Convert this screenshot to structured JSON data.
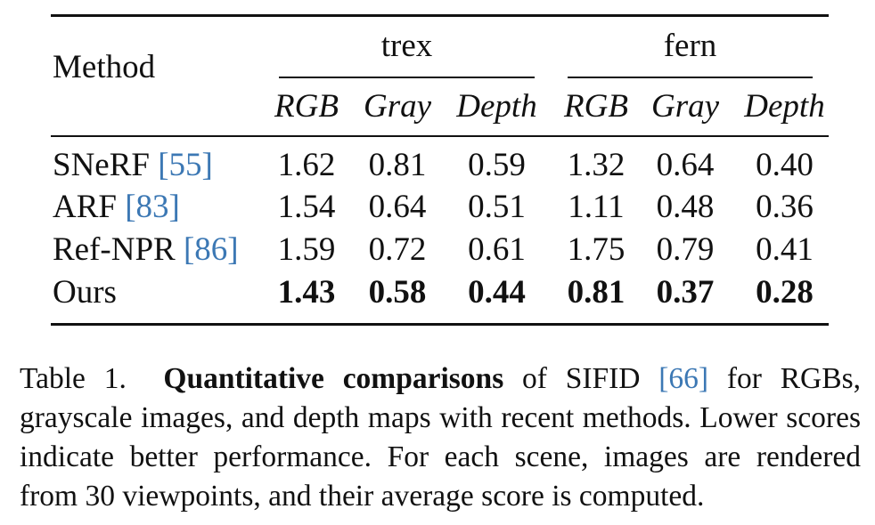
{
  "table": {
    "method_header": "Method",
    "groups": [
      "trex",
      "fern"
    ],
    "subcolumns": [
      "RGB",
      "Gray",
      "Depth",
      "RGB",
      "Gray",
      "Depth"
    ],
    "rows": [
      {
        "method": "SNeRF ",
        "cite": "[55]",
        "values": [
          "1.62",
          "0.81",
          "0.59",
          "1.32",
          "0.64",
          "0.40"
        ],
        "bold": false
      },
      {
        "method": "ARF ",
        "cite": "[83]",
        "values": [
          "1.54",
          "0.64",
          "0.51",
          "1.11",
          "0.48",
          "0.36"
        ],
        "bold": false
      },
      {
        "method": "Ref-NPR ",
        "cite": "[86]",
        "values": [
          "1.59",
          "0.72",
          "0.61",
          "1.75",
          "0.79",
          "0.41"
        ],
        "bold": false
      },
      {
        "method": "Ours",
        "cite": "",
        "values": [
          "1.43",
          "0.58",
          "0.44",
          "0.81",
          "0.37",
          "0.28"
        ],
        "bold": true
      }
    ]
  },
  "caption": {
    "label": "Table 1.",
    "bold_phrase": "Quantitative comparisons",
    "text_before_cite": " of SIFID ",
    "cite": "[66]",
    "text_after_cite": " for RGBs, grayscale images, and depth maps with recent methods. Lower scores indicate better performance. For each scene, images are rendered from 30 viewpoints, and their average score is computed."
  },
  "colors": {
    "citation": "#3c78b4",
    "text": "#111111"
  }
}
